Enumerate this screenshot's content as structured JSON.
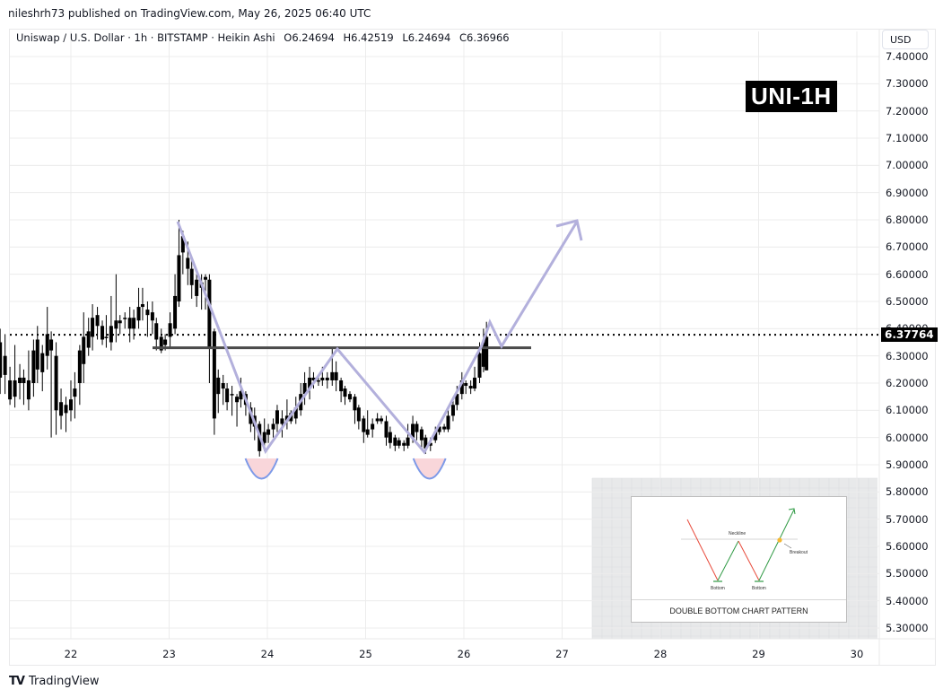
{
  "publish_line": "nileshrh73 published on TradingView.com, May 26, 2025 06:40 UTC",
  "legend": {
    "symbol": "Uniswap / U.S. Dollar · 1h · BITSTAMP · Heikin Ashi",
    "open": "O6.24694",
    "high": "H6.42519",
    "low": "L6.24694",
    "close": "C6.36966"
  },
  "currency_button": "USD",
  "badge": "UNI-1H",
  "last_price": "6.37764",
  "footer_brand": "TradingView",
  "inset": {
    "caption": "DOUBLE BOTTOM CHART PATTERN",
    "neckline_label": "Neckline",
    "breakout_label": "Breakout",
    "bottom_label_1": "Bottom",
    "bottom_label_2": "Bottom"
  },
  "colors": {
    "candle": "#000000",
    "pattern_line": "#b3b0dc",
    "neckline": "#4a4a4a",
    "bottom_fill": "#f9d6da",
    "bottom_stroke": "#7d9ae8",
    "grid": "#ececec",
    "inset_bg": "#e8e9ea"
  },
  "chart_data": {
    "type": "candlestick",
    "title": "Uniswap / U.S. Dollar · 1h · BITSTAMP · Heikin Ashi",
    "xlabel": "",
    "ylabel": "USD",
    "x_ticks": [
      "22",
      "23",
      "24",
      "25",
      "26",
      "27",
      "28",
      "29",
      "30"
    ],
    "y_ticks": [
      "7.40000",
      "7.30000",
      "7.20000",
      "7.10000",
      "7.00000",
      "6.90000",
      "6.80000",
      "6.70000",
      "6.60000",
      "6.50000",
      "6.40000",
      "6.30000",
      "6.20000",
      "6.10000",
      "6.00000",
      "5.90000",
      "5.80000",
      "5.70000",
      "5.60000",
      "5.50000",
      "5.40000",
      "5.30000"
    ],
    "ylim": [
      5.25,
      7.45
    ],
    "last_price": 6.37764,
    "neckline": 6.33,
    "ohlc_last": {
      "open": 6.24694,
      "high": 6.42519,
      "low": 6.24694,
      "close": 6.36966
    },
    "pattern": "double bottom",
    "bottoms": [
      {
        "day": 23.95,
        "price": 5.95
      },
      {
        "day": 25.65,
        "price": 5.94
      }
    ],
    "peak_between": {
      "day": 24.7,
      "price": 6.33
    },
    "projected_target": {
      "day": 27.2,
      "price": 6.8
    },
    "candles": [
      [
        21.28,
        6.35,
        6.22,
        6.4,
        6.16
      ],
      [
        21.33,
        6.23,
        6.3,
        6.38,
        6.16
      ],
      [
        21.38,
        6.21,
        6.14,
        6.26,
        6.12
      ],
      [
        21.43,
        6.15,
        6.21,
        6.34,
        6.11
      ],
      [
        21.48,
        6.2,
        6.22,
        6.27,
        6.14
      ],
      [
        21.52,
        6.22,
        6.2,
        6.25,
        6.12
      ],
      [
        21.57,
        6.21,
        6.14,
        6.32,
        6.1
      ],
      [
        21.62,
        6.2,
        6.32,
        6.36,
        6.15
      ],
      [
        21.66,
        6.25,
        6.36,
        6.41,
        6.2
      ],
      [
        21.71,
        6.31,
        6.24,
        6.34,
        6.17
      ],
      [
        21.76,
        6.3,
        6.38,
        6.48,
        6.25
      ],
      [
        21.8,
        6.36,
        6.32,
        6.39,
        6.0
      ],
      [
        21.85,
        6.3,
        6.1,
        6.35,
        6.01
      ],
      [
        21.9,
        6.13,
        6.08,
        6.18,
        6.03
      ],
      [
        21.95,
        6.12,
        6.09,
        6.15,
        6.02
      ],
      [
        22.0,
        6.1,
        6.14,
        6.21,
        6.06
      ],
      [
        22.04,
        6.15,
        6.18,
        6.24,
        6.07
      ],
      [
        22.09,
        6.2,
        6.32,
        6.34,
        6.12
      ],
      [
        22.13,
        6.27,
        6.37,
        6.46,
        6.2
      ],
      [
        22.18,
        6.33,
        6.39,
        6.44,
        6.3
      ],
      [
        22.22,
        6.37,
        6.44,
        6.49,
        6.32
      ],
      [
        22.27,
        6.41,
        6.45,
        6.48,
        6.36
      ],
      [
        22.32,
        6.41,
        6.36,
        6.43,
        6.34
      ],
      [
        22.36,
        6.37,
        6.37,
        6.45,
        6.33
      ],
      [
        22.41,
        6.35,
        6.41,
        6.52,
        6.32
      ],
      [
        22.46,
        6.4,
        6.43,
        6.6,
        6.35
      ],
      [
        22.5,
        6.43,
        6.42,
        6.45,
        6.38
      ],
      [
        22.55,
        6.44,
        6.44,
        6.46,
        6.4
      ],
      [
        22.6,
        6.44,
        6.4,
        6.48,
        6.35
      ],
      [
        22.64,
        6.4,
        6.44,
        6.47,
        6.36
      ],
      [
        22.69,
        6.43,
        6.48,
        6.55,
        6.4
      ],
      [
        22.73,
        6.48,
        6.49,
        6.55,
        6.43
      ],
      [
        22.78,
        6.47,
        6.45,
        6.5,
        6.37
      ],
      [
        22.83,
        6.46,
        6.43,
        6.5,
        6.38
      ],
      [
        22.87,
        6.42,
        6.36,
        6.44,
        6.32
      ],
      [
        22.92,
        6.37,
        6.32,
        6.4,
        6.31
      ],
      [
        22.96,
        6.36,
        6.34,
        6.38,
        6.32
      ],
      [
        23.01,
        6.37,
        6.42,
        6.46,
        6.33
      ],
      [
        23.06,
        6.4,
        6.52,
        6.6,
        6.38
      ],
      [
        23.1,
        6.5,
        6.67,
        6.8,
        6.48
      ],
      [
        23.14,
        6.68,
        6.74,
        6.76,
        6.6
      ],
      [
        23.19,
        6.66,
        6.62,
        6.72,
        6.56
      ],
      [
        23.23,
        6.62,
        6.56,
        6.65,
        6.51
      ],
      [
        23.28,
        6.58,
        6.52,
        6.6,
        6.48
      ],
      [
        23.33,
        6.57,
        6.55,
        6.6,
        6.47
      ],
      [
        23.37,
        6.58,
        6.59,
        6.6,
        6.47
      ],
      [
        23.41,
        6.58,
        6.33,
        6.6,
        6.2
      ],
      [
        23.46,
        6.39,
        6.07,
        6.4,
        6.01
      ],
      [
        23.5,
        6.22,
        6.16,
        6.25,
        6.09
      ],
      [
        23.55,
        6.18,
        6.2,
        6.23,
        6.12
      ],
      [
        23.59,
        6.18,
        6.13,
        6.2,
        6.1
      ],
      [
        23.64,
        6.16,
        6.16,
        6.19,
        6.08
      ],
      [
        23.69,
        6.15,
        6.13,
        6.16,
        6.04
      ],
      [
        23.73,
        6.14,
        6.17,
        6.22,
        6.11
      ],
      [
        23.78,
        6.16,
        6.12,
        6.17,
        6.08
      ],
      [
        23.83,
        6.11,
        6.05,
        6.13,
        6.02
      ],
      [
        23.87,
        6.08,
        6.04,
        6.11,
        5.99
      ],
      [
        23.92,
        6.05,
        5.95,
        6.06,
        5.93
      ],
      [
        23.97,
        6.02,
        5.98,
        6.07,
        5.95
      ],
      [
        24.01,
        6.03,
        6.01,
        6.05,
        5.98
      ],
      [
        24.06,
        6.03,
        6.05,
        6.07,
        6.0
      ],
      [
        24.1,
        6.05,
        6.1,
        6.12,
        6.02
      ],
      [
        24.15,
        6.07,
        6.05,
        6.1,
        6.0
      ],
      [
        24.2,
        6.06,
        6.08,
        6.14,
        6.03
      ],
      [
        24.24,
        6.09,
        6.06,
        6.1,
        6.05
      ],
      [
        24.29,
        6.07,
        6.11,
        6.15,
        6.05
      ],
      [
        24.34,
        6.1,
        6.16,
        6.2,
        6.08
      ],
      [
        24.38,
        6.16,
        6.2,
        6.24,
        6.12
      ],
      [
        24.43,
        6.18,
        6.22,
        6.26,
        6.14
      ],
      [
        24.47,
        6.22,
        6.21,
        6.24,
        6.18
      ],
      [
        24.52,
        6.21,
        6.21,
        6.23,
        6.19
      ],
      [
        24.56,
        6.21,
        6.22,
        6.26,
        6.19
      ],
      [
        24.61,
        6.22,
        6.21,
        6.24,
        6.18
      ],
      [
        24.66,
        6.21,
        6.24,
        6.33,
        6.19
      ],
      [
        24.7,
        6.24,
        6.21,
        6.28,
        6.17
      ],
      [
        24.75,
        6.21,
        6.17,
        6.22,
        6.13
      ],
      [
        24.79,
        6.18,
        6.15,
        6.19,
        6.12
      ],
      [
        24.84,
        6.16,
        6.14,
        6.17,
        6.13
      ],
      [
        24.89,
        6.15,
        6.1,
        6.16,
        6.05
      ],
      [
        24.93,
        6.11,
        6.06,
        6.12,
        6.03
      ],
      [
        24.98,
        6.07,
        6.02,
        6.08,
        5.98
      ],
      [
        25.02,
        6.03,
        6.01,
        6.1,
        6.0
      ],
      [
        25.07,
        6.03,
        6.05,
        6.07,
        6.0
      ],
      [
        25.12,
        6.06,
        6.07,
        6.09,
        6.05
      ],
      [
        25.16,
        6.07,
        6.06,
        6.08,
        6.05
      ],
      [
        25.21,
        6.06,
        6.0,
        6.08,
        5.97
      ],
      [
        25.25,
        6.02,
        5.98,
        6.04,
        5.96
      ],
      [
        25.3,
        6.0,
        5.97,
        6.01,
        5.95
      ],
      [
        25.34,
        5.99,
        5.97,
        6.0,
        5.96
      ],
      [
        25.39,
        5.98,
        5.97,
        5.99,
        5.95
      ],
      [
        25.43,
        5.97,
        6.0,
        6.05,
        5.96
      ],
      [
        25.48,
        6.0,
        6.05,
        6.08,
        5.98
      ],
      [
        25.52,
        6.05,
        6.02,
        6.06,
        5.99
      ],
      [
        25.57,
        6.03,
        5.99,
        6.04,
        5.96
      ],
      [
        25.61,
        6.0,
        5.96,
        6.01,
        5.94
      ],
      [
        25.66,
        5.97,
        5.98,
        6.0,
        5.95
      ],
      [
        25.71,
        5.99,
        6.02,
        6.04,
        5.98
      ],
      [
        25.75,
        6.02,
        6.04,
        6.05,
        6.01
      ],
      [
        25.8,
        6.04,
        6.03,
        6.05,
        6.02
      ],
      [
        25.84,
        6.03,
        6.08,
        6.1,
        6.02
      ],
      [
        25.89,
        6.08,
        6.12,
        6.15,
        6.06
      ],
      [
        25.93,
        6.12,
        6.16,
        6.19,
        6.1
      ],
      [
        25.98,
        6.16,
        6.21,
        6.24,
        6.14
      ],
      [
        26.02,
        6.2,
        6.19,
        6.21,
        6.16
      ],
      [
        26.07,
        6.19,
        6.18,
        6.21,
        6.16
      ],
      [
        26.11,
        6.18,
        6.22,
        6.26,
        6.17
      ],
      [
        26.16,
        6.22,
        6.31,
        6.35,
        6.2
      ],
      [
        26.2,
        6.26,
        6.35,
        6.4,
        6.24
      ],
      [
        26.23,
        6.24694,
        6.36966,
        6.42519,
        6.24694
      ]
    ]
  }
}
